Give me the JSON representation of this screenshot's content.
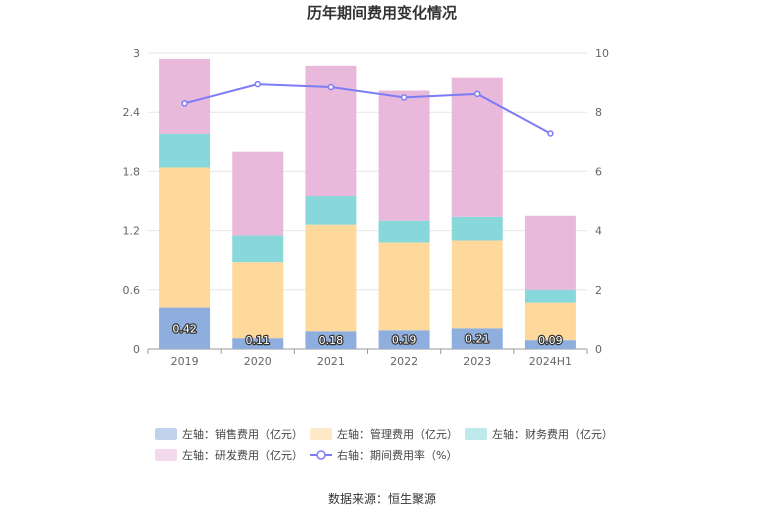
{
  "chart_data": {
    "type": "bar",
    "stacked": true,
    "title": "历年期间费用变化情况",
    "categories": [
      "2019",
      "2020",
      "2021",
      "2022",
      "2023",
      "2024H1"
    ],
    "series": [
      {
        "name": "左轴：销售费用（亿元）",
        "axis": "left",
        "color": "#8eaedd",
        "values": [
          0.42,
          0.11,
          0.18,
          0.19,
          0.21,
          0.09
        ],
        "labels": [
          "0.42",
          "0.11",
          "0.18",
          "0.19",
          "0.21",
          "0.09"
        ]
      },
      {
        "name": "左轴：管理费用（亿元）",
        "axis": "left",
        "color": "#fed99b",
        "values": [
          1.42,
          0.77,
          1.08,
          0.89,
          0.89,
          0.38
        ]
      },
      {
        "name": "左轴：财务费用（亿元）",
        "axis": "left",
        "color": "#88d7da",
        "values": [
          0.34,
          0.27,
          0.29,
          0.22,
          0.24,
          0.13
        ]
      },
      {
        "name": "左轴：研发费用（亿元）",
        "axis": "left",
        "color": "#e8b9da",
        "values": [
          0.76,
          0.85,
          1.32,
          1.32,
          1.41,
          0.75
        ]
      }
    ],
    "line": {
      "name": "右轴：期间费用率（%）",
      "axis": "right",
      "color": "#7c7cf6",
      "values": [
        8.3,
        8.95,
        8.85,
        8.5,
        8.62,
        7.28
      ]
    },
    "left_axis": {
      "min": 0,
      "max": 3,
      "ticks": [
        "0",
        "0.6",
        "1.2",
        "1.8",
        "2.4",
        "3"
      ]
    },
    "right_axis": {
      "min": 0,
      "max": 10,
      "ticks": [
        "0",
        "2",
        "4",
        "6",
        "8",
        "10"
      ]
    },
    "legend_position": "bottom",
    "grid": true
  },
  "source_text": "数据来源：恒生聚源"
}
